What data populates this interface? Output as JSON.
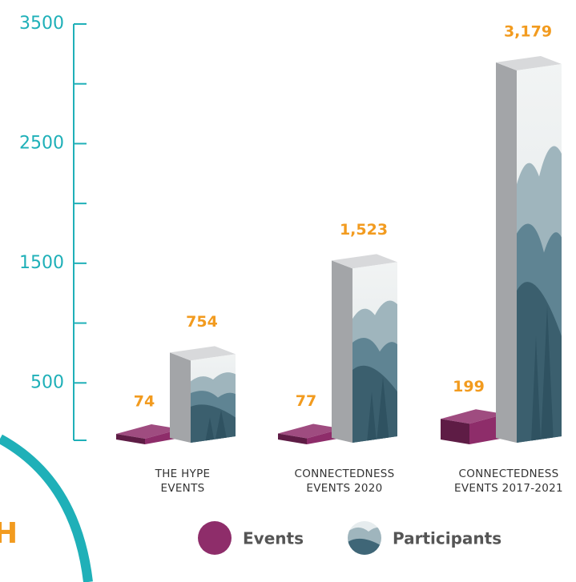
{
  "chart_data": {
    "type": "bar3d",
    "categories": [
      "THE HYPE\nEVENTS",
      "CONNECTEDNESS\nEVENTS 2020",
      "CONNECTEDNESS\nEVENTS 2017-2021"
    ],
    "series": [
      {
        "name": "Events",
        "color": "#8e2d6a",
        "values": [
          74,
          77,
          199
        ]
      },
      {
        "name": "Participants",
        "color": "#3f6677",
        "values": [
          754,
          1523,
          3179
        ],
        "value_labels": [
          "754",
          "1,523",
          "3,179"
        ]
      }
    ],
    "ylim": [
      0,
      3500
    ],
    "yticks": [
      500,
      1500,
      2500,
      3500
    ],
    "yminor_ticks": [
      1000,
      2000,
      3000
    ],
    "axis_color": "#1fb0b8",
    "label_color": "#f29b1f",
    "fragment": "H"
  }
}
